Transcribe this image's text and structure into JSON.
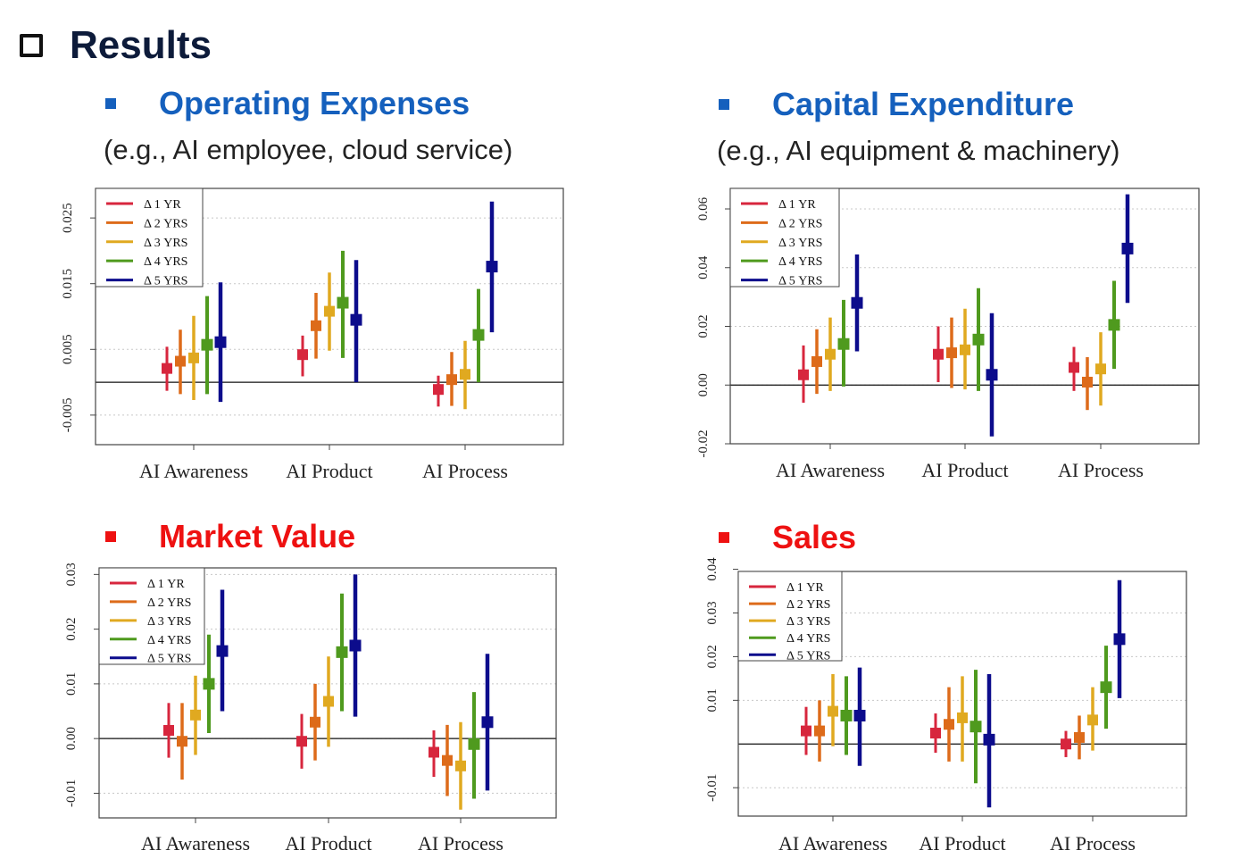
{
  "slide": {
    "title": "Results",
    "panels": [
      {
        "heading": "Operating Expenses",
        "subtitle": "(e.g., AI employee, cloud service)",
        "color": "#1560bd"
      },
      {
        "heading": "Capital Expenditure",
        "subtitle": "(e.g., AI equipment & machinery)",
        "color": "#1560bd"
      },
      {
        "heading": "Market Value",
        "subtitle": "",
        "color": "#ee1111"
      },
      {
        "heading": "Sales",
        "subtitle": "",
        "color": "#ee1111"
      }
    ]
  },
  "legend": [
    "Δ 1 YR",
    "Δ 2 YRS",
    "Δ 3 YRS",
    "Δ 4 YRS",
    "Δ 5 YRS"
  ],
  "series_colors": [
    "#d7263d",
    "#dd6b1a",
    "#e0a920",
    "#4f9a1e",
    "#0c0c8c"
  ],
  "chart_data": [
    {
      "type": "scatter",
      "categories": [
        "AI Awareness",
        "AI Product",
        "AI Process"
      ],
      "yticks": [
        "-0.005",
        "0.005",
        "0.015",
        "0.025"
      ],
      "ylim": [
        -0.0095,
        0.0295
      ],
      "series": [
        {
          "name": "Δ 1 YR",
          "estimates": [
            0.0021,
            0.0042,
            -0.0011
          ],
          "lower": [
            -0.0013,
            0.0009,
            -0.0037
          ],
          "upper": [
            0.0054,
            0.0071,
            0.001
          ]
        },
        {
          "name": "Δ 2 YRS",
          "estimates": [
            0.0032,
            0.0086,
            0.0004
          ],
          "lower": [
            -0.0018,
            0.0036,
            -0.0036
          ],
          "upper": [
            0.008,
            0.0136,
            0.0046
          ]
        },
        {
          "name": "Δ 3 YRS",
          "estimates": [
            0.0037,
            0.0108,
            0.0012
          ],
          "lower": [
            -0.0027,
            0.0048,
            -0.0041
          ],
          "upper": [
            0.0101,
            0.0167,
            0.0063
          ]
        },
        {
          "name": "Δ 4 YRS",
          "estimates": [
            0.0057,
            0.0121,
            0.0072
          ],
          "lower": [
            -0.0018,
            0.0037,
            0.0
          ],
          "upper": [
            0.0131,
            0.02,
            0.0142
          ]
        },
        {
          "name": "Δ 5 YRS",
          "estimates": [
            0.0061,
            0.0095,
            0.0176
          ],
          "lower": [
            -0.003,
            0.0,
            0.0076
          ],
          "upper": [
            0.0152,
            0.0186,
            0.0275
          ]
        }
      ]
    },
    {
      "type": "scatter",
      "categories": [
        "AI Awareness",
        "AI Product",
        "AI Process"
      ],
      "yticks": [
        "-0.02",
        "0.00",
        "0.02",
        "0.04",
        "0.06"
      ],
      "ylim": [
        -0.02,
        0.067
      ],
      "series": [
        {
          "name": "Δ 1 YR",
          "estimates": [
            0.0035,
            0.0105,
            0.006
          ],
          "lower": [
            -0.006,
            0.001,
            -0.002
          ],
          "upper": [
            0.0135,
            0.02,
            0.013
          ]
        },
        {
          "name": "Δ 2 YRS",
          "estimates": [
            0.008,
            0.011,
            0.001
          ],
          "lower": [
            -0.003,
            -0.001,
            -0.0085
          ],
          "upper": [
            0.019,
            0.023,
            0.0095
          ]
        },
        {
          "name": "Δ 3 YRS",
          "estimates": [
            0.0105,
            0.012,
            0.0055
          ],
          "lower": [
            -0.002,
            -0.0015,
            -0.007
          ],
          "upper": [
            0.023,
            0.026,
            0.018
          ]
        },
        {
          "name": "Δ 4 YRS",
          "estimates": [
            0.014,
            0.0155,
            0.0205
          ],
          "lower": [
            -0.0005,
            -0.002,
            0.0055
          ],
          "upper": [
            0.029,
            0.033,
            0.0355
          ]
        },
        {
          "name": "Δ 5 YRS",
          "estimates": [
            0.028,
            0.0035,
            0.0465
          ],
          "lower": [
            0.0115,
            -0.0175,
            0.028
          ],
          "upper": [
            0.0445,
            0.0245,
            0.065
          ]
        }
      ]
    },
    {
      "type": "scatter",
      "categories": [
        "AI Awareness",
        "AI Product",
        "AI Process"
      ],
      "yticks": [
        "-0.01",
        "0.00",
        "0.01",
        "0.02",
        "0.03"
      ],
      "ylim": [
        -0.0145,
        0.0312
      ],
      "series": [
        {
          "name": "Δ 1 YR",
          "estimates": [
            0.0015,
            -0.0005,
            -0.0025
          ],
          "lower": [
            -0.0035,
            -0.0055,
            -0.007
          ],
          "upper": [
            0.0065,
            0.0045,
            0.0015
          ]
        },
        {
          "name": "Δ 2 YRS",
          "estimates": [
            -0.0005,
            0.003,
            -0.004
          ],
          "lower": [
            -0.0075,
            -0.004,
            -0.0105
          ],
          "upper": [
            0.0065,
            0.01,
            0.0025
          ]
        },
        {
          "name": "Δ 3 YRS",
          "estimates": [
            0.0043,
            0.0068,
            -0.005
          ],
          "lower": [
            -0.003,
            -0.0015,
            -0.013
          ],
          "upper": [
            0.0115,
            0.015,
            0.003
          ]
        },
        {
          "name": "Δ 4 YRS",
          "estimates": [
            0.01,
            0.0158,
            -0.001
          ],
          "lower": [
            0.001,
            0.005,
            -0.011
          ],
          "upper": [
            0.019,
            0.0265,
            0.0085
          ]
        },
        {
          "name": "Δ 5 YRS",
          "estimates": [
            0.016,
            0.017,
            0.003
          ],
          "lower": [
            0.005,
            0.004,
            -0.0095
          ],
          "upper": [
            0.0272,
            0.03,
            0.0155
          ]
        }
      ]
    },
    {
      "type": "scatter",
      "categories": [
        "AI Awareness",
        "AI Product",
        "AI Process"
      ],
      "yticks": [
        "-0.01",
        "0.01",
        "0.02",
        "0.03",
        "0.04"
      ],
      "ylim": [
        -0.0165,
        0.0395
      ],
      "series": [
        {
          "name": "Δ 1 YR",
          "estimates": [
            0.003,
            0.0025,
            0.0
          ],
          "lower": [
            -0.0025,
            -0.002,
            -0.003
          ],
          "upper": [
            0.0085,
            0.007,
            0.003
          ]
        },
        {
          "name": "Δ 2 YRS",
          "estimates": [
            0.003,
            0.0045,
            0.0015
          ],
          "lower": [
            -0.004,
            -0.004,
            -0.0035
          ],
          "upper": [
            0.01,
            0.013,
            0.0065
          ]
        },
        {
          "name": "Δ 3 YRS",
          "estimates": [
            0.0075,
            0.006,
            0.0055
          ],
          "lower": [
            -0.0005,
            -0.004,
            -0.0015
          ],
          "upper": [
            0.016,
            0.0155,
            0.013
          ]
        },
        {
          "name": "Δ 4 YRS",
          "estimates": [
            0.0065,
            0.004,
            0.013
          ],
          "lower": [
            -0.0025,
            -0.009,
            0.0035
          ],
          "upper": [
            0.0155,
            0.017,
            0.0225
          ]
        },
        {
          "name": "Δ 5 YRS",
          "estimates": [
            0.0065,
            0.001,
            0.024
          ],
          "lower": [
            -0.005,
            -0.0145,
            0.0105
          ],
          "upper": [
            0.0175,
            0.016,
            0.0375
          ]
        }
      ]
    }
  ]
}
